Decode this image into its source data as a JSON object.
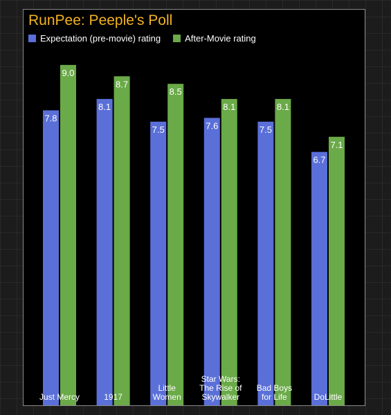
{
  "title": "RunPee: Peeple's Poll",
  "colors": {
    "title": "#f3b321",
    "expectation": "#5a6fd8",
    "after": "#6aaa48",
    "background": "#000000"
  },
  "chart_data": {
    "type": "bar",
    "title": "RunPee: Peeple's Poll",
    "xlabel": "",
    "ylabel": "",
    "ylim": [
      0,
      9.4
    ],
    "grid": false,
    "legend_position": "top-left",
    "categories": [
      [
        "Just Mercy"
      ],
      [
        "1917"
      ],
      [
        "Little",
        "Women"
      ],
      [
        "Star Wars:",
        "The Rise of",
        "Skywalker"
      ],
      [
        "Bad Boys",
        "for Life"
      ],
      [
        "DoLittle"
      ]
    ],
    "series": [
      {
        "name": "Expectation (pre-movie) rating",
        "color": "#5a6fd8",
        "values": [
          7.8,
          8.1,
          7.5,
          7.6,
          7.5,
          6.7
        ]
      },
      {
        "name": "After-Movie rating",
        "color": "#6aaa48",
        "values": [
          9.0,
          8.7,
          8.5,
          8.1,
          8.1,
          7.1
        ]
      }
    ]
  }
}
